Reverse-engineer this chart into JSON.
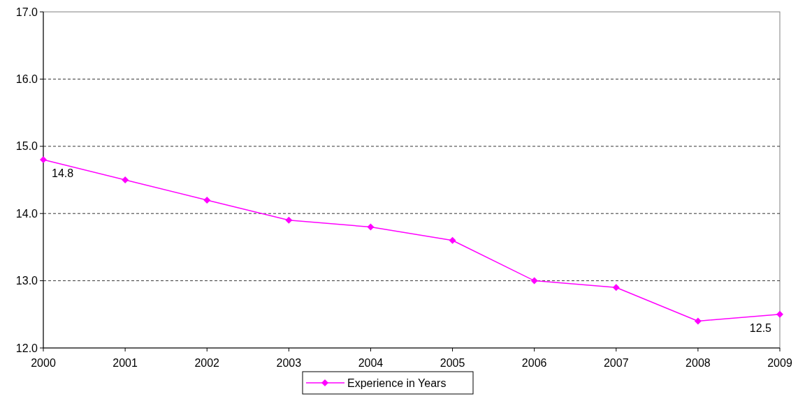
{
  "chart_data": {
    "type": "line",
    "x": [
      2000,
      2001,
      2002,
      2003,
      2004,
      2005,
      2006,
      2007,
      2008,
      2009
    ],
    "series": [
      {
        "name": "Experience in Years",
        "color": "#ff00ff",
        "values": [
          14.8,
          14.5,
          14.2,
          13.9,
          13.8,
          13.6,
          13.0,
          12.9,
          12.4,
          12.5
        ],
        "value_labels": [
          "14.8",
          null,
          null,
          null,
          null,
          null,
          null,
          null,
          null,
          "12.5"
        ]
      }
    ],
    "xlim": [
      2000,
      2009
    ],
    "xticks": [
      2000,
      2001,
      2002,
      2003,
      2004,
      2005,
      2006,
      2007,
      2008,
      2009
    ],
    "ylim": [
      12,
      17
    ],
    "yticks": [
      {
        "value": 12,
        "label": "12.0"
      },
      {
        "value": 13,
        "label": "13.0"
      },
      {
        "value": 14,
        "label": "14.0"
      },
      {
        "value": 15,
        "label": "15.0"
      },
      {
        "value": 16,
        "label": "16.0"
      },
      {
        "value": 17,
        "label": "17.0"
      }
    ],
    "grid": "y",
    "legend": "bottom",
    "marker": "diamond",
    "line_style": "solid"
  }
}
